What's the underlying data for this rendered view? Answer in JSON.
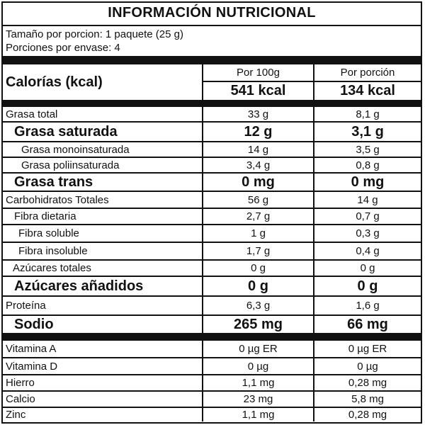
{
  "title": "INFORMACIÓN NUTRICIONAL",
  "serving_size": "Tamaño por porcion: 1 paquete (25 g)",
  "servings_per_container": "Porciones por envase: 4",
  "calories": {
    "label": "Calorías (kcal)",
    "col1_header": "Por 100g",
    "col2_header": "Por porción",
    "per_100g": "541 kcal",
    "per_serving": "134 kcal"
  },
  "nutrients": [
    {
      "name": "Grasa total",
      "per_100g": "33 g",
      "per_serving": "8,1 g"
    },
    {
      "name": "Grasa saturada",
      "per_100g": "12 g",
      "per_serving": "3,1 g"
    },
    {
      "name": "Grasa monoinsaturada",
      "per_100g": "14 g",
      "per_serving": "3,5 g"
    },
    {
      "name": "Grasa poliinsaturada",
      "per_100g": "3,4 g",
      "per_serving": "0,8 g"
    },
    {
      "name": "Grasa trans",
      "per_100g": "0 mg",
      "per_serving": "0 mg"
    },
    {
      "name": "Carbohidratos Totales",
      "per_100g": "56 g",
      "per_serving": "14 g"
    },
    {
      "name": "Fibra dietaria",
      "per_100g": "2,7 g",
      "per_serving": "0,7 g"
    },
    {
      "name": "Fibra soluble",
      "per_100g": "1 g",
      "per_serving": "0,3 g"
    },
    {
      "name": "Fibra insoluble",
      "per_100g": "1,7 g",
      "per_serving": "0,4 g"
    },
    {
      "name": "Azúcares totales",
      "per_100g": "0 g",
      "per_serving": "0 g"
    },
    {
      "name": "Azúcares añadidos",
      "per_100g": "0 g",
      "per_serving": "0 g"
    },
    {
      "name": "Proteína",
      "per_100g": "6,3 g",
      "per_serving": "1,6 g"
    },
    {
      "name": "Sodio",
      "per_100g": "265 mg",
      "per_serving": "66 mg"
    }
  ],
  "micronutrients": [
    {
      "name": "Vitamina A",
      "per_100g": "0 µg ER",
      "per_serving": "0 µg ER"
    },
    {
      "name": "Vitamina D",
      "per_100g": "0 µg",
      "per_serving": "0 µg"
    },
    {
      "name": "Hierro",
      "per_100g": "1,1 mg",
      "per_serving": "0,28 mg"
    },
    {
      "name": "Calcio",
      "per_100g": "23 mg",
      "per_serving": "5,8 mg"
    },
    {
      "name": "Zinc",
      "per_100g": "1,1 mg",
      "per_serving": "0,28 mg"
    }
  ]
}
